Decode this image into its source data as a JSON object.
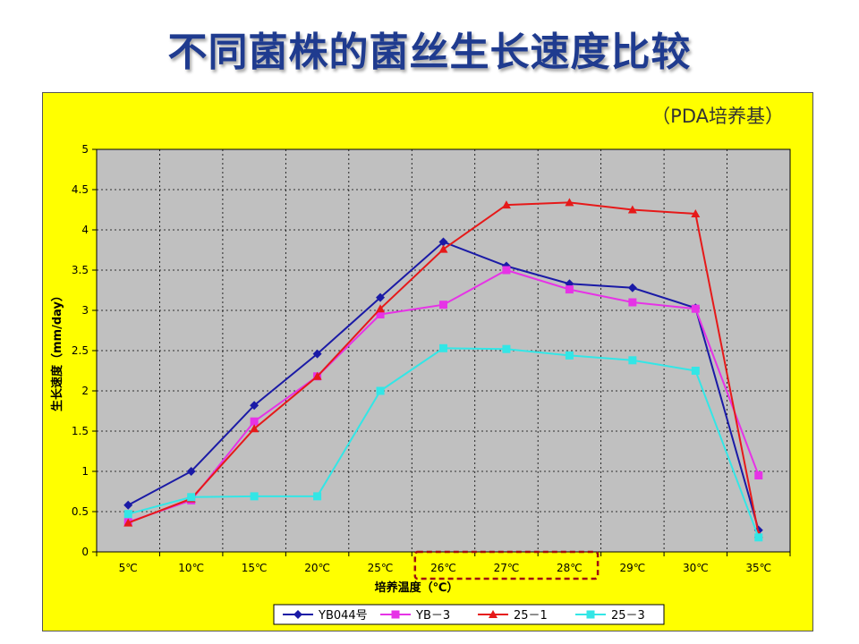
{
  "slide": {
    "title": "不同菌株的菌丝生长速度比较",
    "subtitle": "（PDA培养基）"
  },
  "colors": {
    "title": "#1f3b8f",
    "panel_background": "#ffff00",
    "plot_background": "#c0c0c0",
    "highlight_box": "#a01010"
  },
  "chart_data": {
    "type": "line",
    "title": "",
    "xlabel": "培养温度（℃）",
    "ylabel": "生长速度（mm/day）",
    "categories": [
      "5℃",
      "10℃",
      "15℃",
      "20℃",
      "25℃",
      "26℃",
      "27℃",
      "28℃",
      "29℃",
      "30℃",
      "35℃"
    ],
    "ylim": [
      0,
      5
    ],
    "yticks": [
      0,
      0.5,
      1,
      1.5,
      2,
      2.5,
      3,
      3.5,
      4,
      4.5,
      5
    ],
    "ytick_labels": [
      "0",
      "0.5",
      "1",
      "1.5",
      "2",
      "2.5",
      "3",
      "3.5",
      "4",
      "4.5",
      "5"
    ],
    "grid": true,
    "legend_position": "bottom",
    "highlighted_categories": [
      "26℃",
      "27℃",
      "28℃"
    ],
    "series": [
      {
        "name": "YB044号",
        "color": "#1a1aa6",
        "marker": "diamond",
        "values": [
          0.58,
          1.0,
          1.82,
          2.46,
          3.16,
          3.85,
          3.55,
          3.33,
          3.28,
          3.03,
          0.27
        ]
      },
      {
        "name": "YB－3",
        "color": "#e633e6",
        "marker": "square",
        "values": [
          0.37,
          0.64,
          1.62,
          2.18,
          2.95,
          3.07,
          3.5,
          3.26,
          3.1,
          3.02,
          0.95
        ]
      },
      {
        "name": "25－1",
        "color": "#e61919",
        "marker": "triangle",
        "values": [
          0.36,
          0.66,
          1.53,
          2.18,
          3.02,
          3.76,
          4.31,
          4.34,
          4.25,
          4.2,
          0.22
        ]
      },
      {
        "name": "25－3",
        "color": "#33e6e6",
        "marker": "square",
        "values": [
          0.47,
          0.68,
          0.69,
          0.69,
          2.0,
          2.53,
          2.52,
          2.44,
          2.38,
          2.25,
          0.18
        ]
      }
    ]
  }
}
